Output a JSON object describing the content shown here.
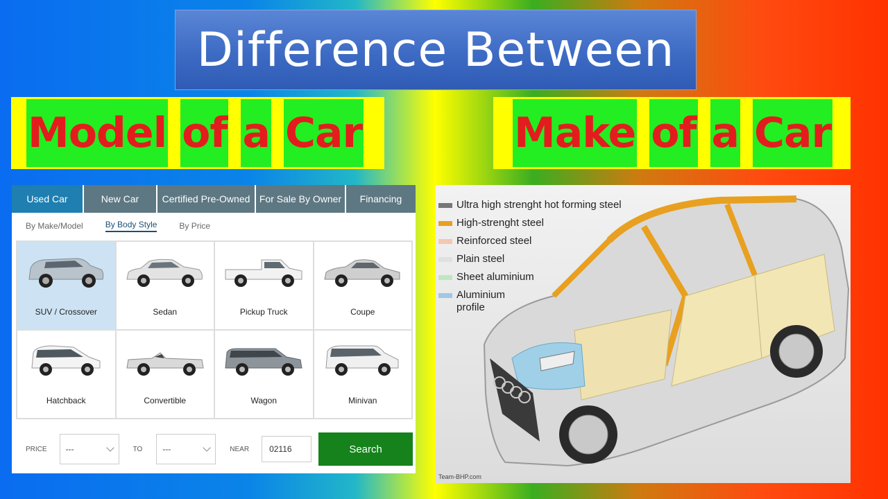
{
  "title": "Difference Between",
  "left_heading": [
    "Model",
    "of",
    "a",
    "Car"
  ],
  "right_heading": [
    "Make",
    "of",
    "a",
    "Car"
  ],
  "widget": {
    "tabs": [
      "Used Car",
      "New Car",
      "Certified Pre-Owned",
      "For Sale By Owner",
      "Financing"
    ],
    "subtabs": [
      "By Make/Model",
      "By Body Style",
      "By Price"
    ],
    "body_styles": [
      "SUV / Crossover",
      "Sedan",
      "Pickup Truck",
      "Coupe",
      "Hatchback",
      "Convertible",
      "Wagon",
      "Minivan"
    ],
    "price_label": "PRICE",
    "price_from": "---",
    "to_label": "TO",
    "price_to": "---",
    "near_label": "NEAR",
    "zip": "02116",
    "search_label": "Search"
  },
  "legend": [
    {
      "label": "Ultra high strenght hot forming steel",
      "color": "#777777"
    },
    {
      "label": "High-strenght steel",
      "color": "#e8a020"
    },
    {
      "label": "Reinforced steel",
      "color": "#f3c8b0"
    },
    {
      "label": "Plain steel",
      "color": "#e0e0e0"
    },
    {
      "label": "Sheet aluminium",
      "color": "#bfe6c2"
    },
    {
      "label": "Aluminium profile",
      "color": "#9fc7e8"
    }
  ],
  "watermark": "Team-BHP.com",
  "colors": {
    "heading_red": "#e31d1d",
    "heading_green": "#22ee22",
    "band_yellow": "#ffff00",
    "search_green": "#15821c",
    "active_tab": "#1e7fb0"
  }
}
